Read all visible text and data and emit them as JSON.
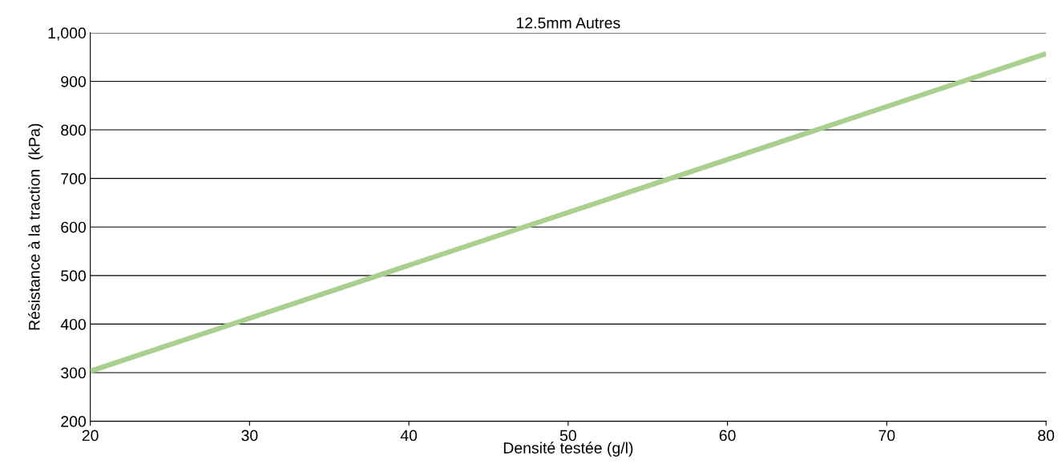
{
  "chart_data": {
    "type": "line",
    "title": "12.5mm Autres",
    "xlabel": "Densité testée (g/l)",
    "ylabel": "Résistance à la traction  (kPa)",
    "x": [
      20,
      80
    ],
    "series": [
      {
        "color": "#a9d18e",
        "values": [
          303,
          957
        ]
      }
    ],
    "xlim": [
      20,
      80
    ],
    "xticks": [
      20,
      30,
      40,
      50,
      60,
      70,
      80
    ],
    "ylim": [
      200,
      1000
    ],
    "yticks": [
      200,
      300,
      400,
      500,
      600,
      700,
      800,
      900,
      {
        "value": 1000,
        "label": "1,000"
      }
    ],
    "grid": "y",
    "marker": "none",
    "line_style": "solid"
  }
}
